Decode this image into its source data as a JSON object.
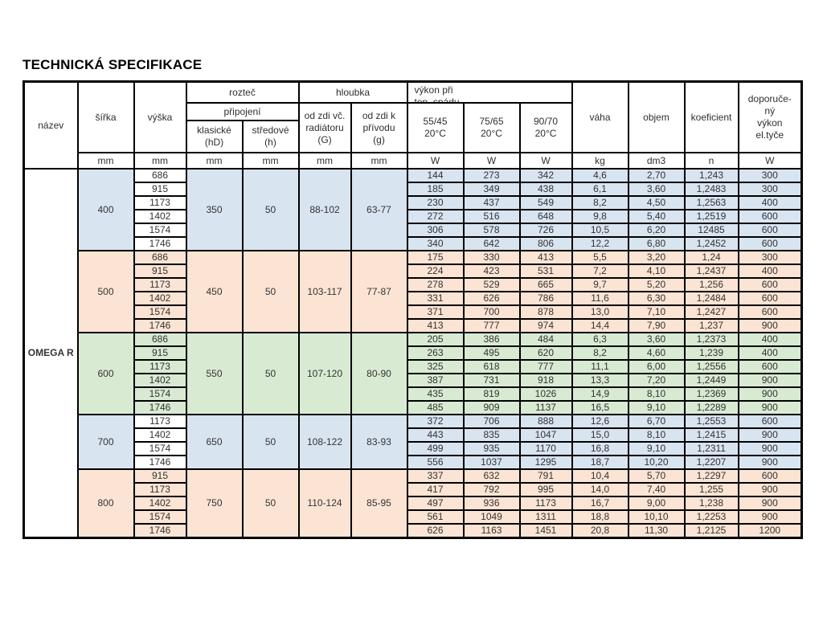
{
  "title": "TECHNICKÁ SPECIFIKACE",
  "table": {
    "product": "OMEGA R",
    "header": {
      "nazev": "název",
      "sirka": "šířka",
      "vyska": "výška",
      "roztec": "rozteč",
      "pripojeni": "připojení",
      "klasicke": "klasické\n(hD)",
      "stredove": "středové\n(h)",
      "hloubka": "hloubka",
      "od_zdi_g": "od zdi  vč.\nradiátoru\n(G)",
      "od_zdi_k": "od zdi  k\npřívodu\n(g)",
      "vykon": "výkon při\ntep. spádu",
      "t5545": "55/45\n20°C",
      "t7565": "75/65\n20°C",
      "t9070": "90/70\n20°C",
      "vaha": "váha",
      "objem": "objem",
      "koeficient": "koeficient",
      "doporuceny": "doporuče-\nný\nvýkon\nel.tyče"
    },
    "units": [
      "mm",
      "mm",
      "mm",
      "mm",
      "mm",
      "mm",
      "W",
      "W",
      "W",
      "kg",
      "dm3",
      "n",
      "W"
    ],
    "groups": [
      {
        "sirka": "400",
        "klasicke": "350",
        "stredove": "50",
        "hloubka_g": "88-102",
        "hloubka_k": "63-77",
        "color": "#d9e4f1",
        "height_color": "#ffffff",
        "rows": [
          [
            "686",
            "144",
            "273",
            "342",
            "4,6",
            "2,70",
            "1,243",
            "300"
          ],
          [
            "915",
            "185",
            "349",
            "438",
            "6,1",
            "3,60",
            "1,2483",
            "300"
          ],
          [
            "1173",
            "230",
            "437",
            "549",
            "8,2",
            "4,50",
            "1,2563",
            "400"
          ],
          [
            "1402",
            "272",
            "516",
            "648",
            "9,8",
            "5,40",
            "1,2519",
            "600"
          ],
          [
            "1574",
            "306",
            "578",
            "726",
            "10,5",
            "6,20",
            "12485",
            "600"
          ],
          [
            "1746",
            "340",
            "642",
            "806",
            "12,2",
            "6,80",
            "1,2452",
            "600"
          ]
        ]
      },
      {
        "sirka": "500",
        "klasicke": "450",
        "stredove": "50",
        "hloubka_g": "103-117",
        "hloubka_k": "77-87",
        "color": "#fce4d4",
        "height_color": "#fce4d4",
        "rows": [
          [
            "686",
            "175",
            "330",
            "413",
            "5,5",
            "3,20",
            "1,24",
            "300"
          ],
          [
            "915",
            "224",
            "423",
            "531",
            "7,2",
            "4,10",
            "1,2437",
            "400"
          ],
          [
            "1173",
            "278",
            "529",
            "665",
            "9,7",
            "5,20",
            "1,256",
            "600"
          ],
          [
            "1402",
            "331",
            "626",
            "786",
            "11,6",
            "6,30",
            "1,2484",
            "600"
          ],
          [
            "1574",
            "371",
            "700",
            "878",
            "13,0",
            "7,10",
            "1,2427",
            "600"
          ],
          [
            "1746",
            "413",
            "777",
            "974",
            "14,4",
            "7,90",
            "1,237",
            "900"
          ]
        ]
      },
      {
        "sirka": "600",
        "klasicke": "550",
        "stredove": "50",
        "hloubka_g": "107-120",
        "hloubka_k": "80-90",
        "color": "#d9ead3",
        "height_color": "#d9ead3",
        "rows": [
          [
            "686",
            "205",
            "386",
            "484",
            "6,3",
            "3,60",
            "1,2373",
            "400"
          ],
          [
            "915",
            "263",
            "495",
            "620",
            "8,2",
            "4,60",
            "1,239",
            "400"
          ],
          [
            "1173",
            "325",
            "618",
            "777",
            "11,1",
            "6,00",
            "1,2556",
            "600"
          ],
          [
            "1402",
            "387",
            "731",
            "918",
            "13,3",
            "7,20",
            "1,2449",
            "900"
          ],
          [
            "1574",
            "435",
            "819",
            "1026",
            "14,9",
            "8,10",
            "1,2369",
            "900"
          ],
          [
            "1746",
            "485",
            "909",
            "1137",
            "16,5",
            "9,10",
            "1,2289",
            "900"
          ]
        ]
      },
      {
        "sirka": "700",
        "klasicke": "650",
        "stredove": "50",
        "hloubka_g": "108-122",
        "hloubka_k": "83-93",
        "color": "#d9e4f1",
        "height_color": "#ffffff",
        "rows": [
          [
            "1173",
            "372",
            "706",
            "888",
            "12,6",
            "6,70",
            "1,2553",
            "600"
          ],
          [
            "1402",
            "443",
            "835",
            "1047",
            "15,0",
            "8,10",
            "1,2415",
            "900"
          ],
          [
            "1574",
            "499",
            "935",
            "1170",
            "16,8",
            "9,10",
            "1,2311",
            "900"
          ],
          [
            "1746",
            "556",
            "1037",
            "1295",
            "18,7",
            "10,20",
            "1,2207",
            "900"
          ]
        ]
      },
      {
        "sirka": "800",
        "klasicke": "750",
        "stredove": "50",
        "hloubka_g": "110-124",
        "hloubka_k": "85-95",
        "color": "#fce4d4",
        "height_color": "#fce4d4",
        "rows": [
          [
            "915",
            "337",
            "632",
            "791",
            "10,4",
            "5,70",
            "1,2297",
            "600"
          ],
          [
            "1173",
            "417",
            "792",
            "995",
            "14,0",
            "7,40",
            "1,255",
            "900"
          ],
          [
            "1402",
            "497",
            "936",
            "1173",
            "16,7",
            "9,00",
            "1,238",
            "900"
          ],
          [
            "1574",
            "561",
            "1049",
            "1311",
            "18,8",
            "10,10",
            "1,2253",
            "900"
          ],
          [
            "1746",
            "626",
            "1163",
            "1451",
            "20,8",
            "11,30",
            "1,2125",
            "1200"
          ]
        ]
      }
    ]
  }
}
